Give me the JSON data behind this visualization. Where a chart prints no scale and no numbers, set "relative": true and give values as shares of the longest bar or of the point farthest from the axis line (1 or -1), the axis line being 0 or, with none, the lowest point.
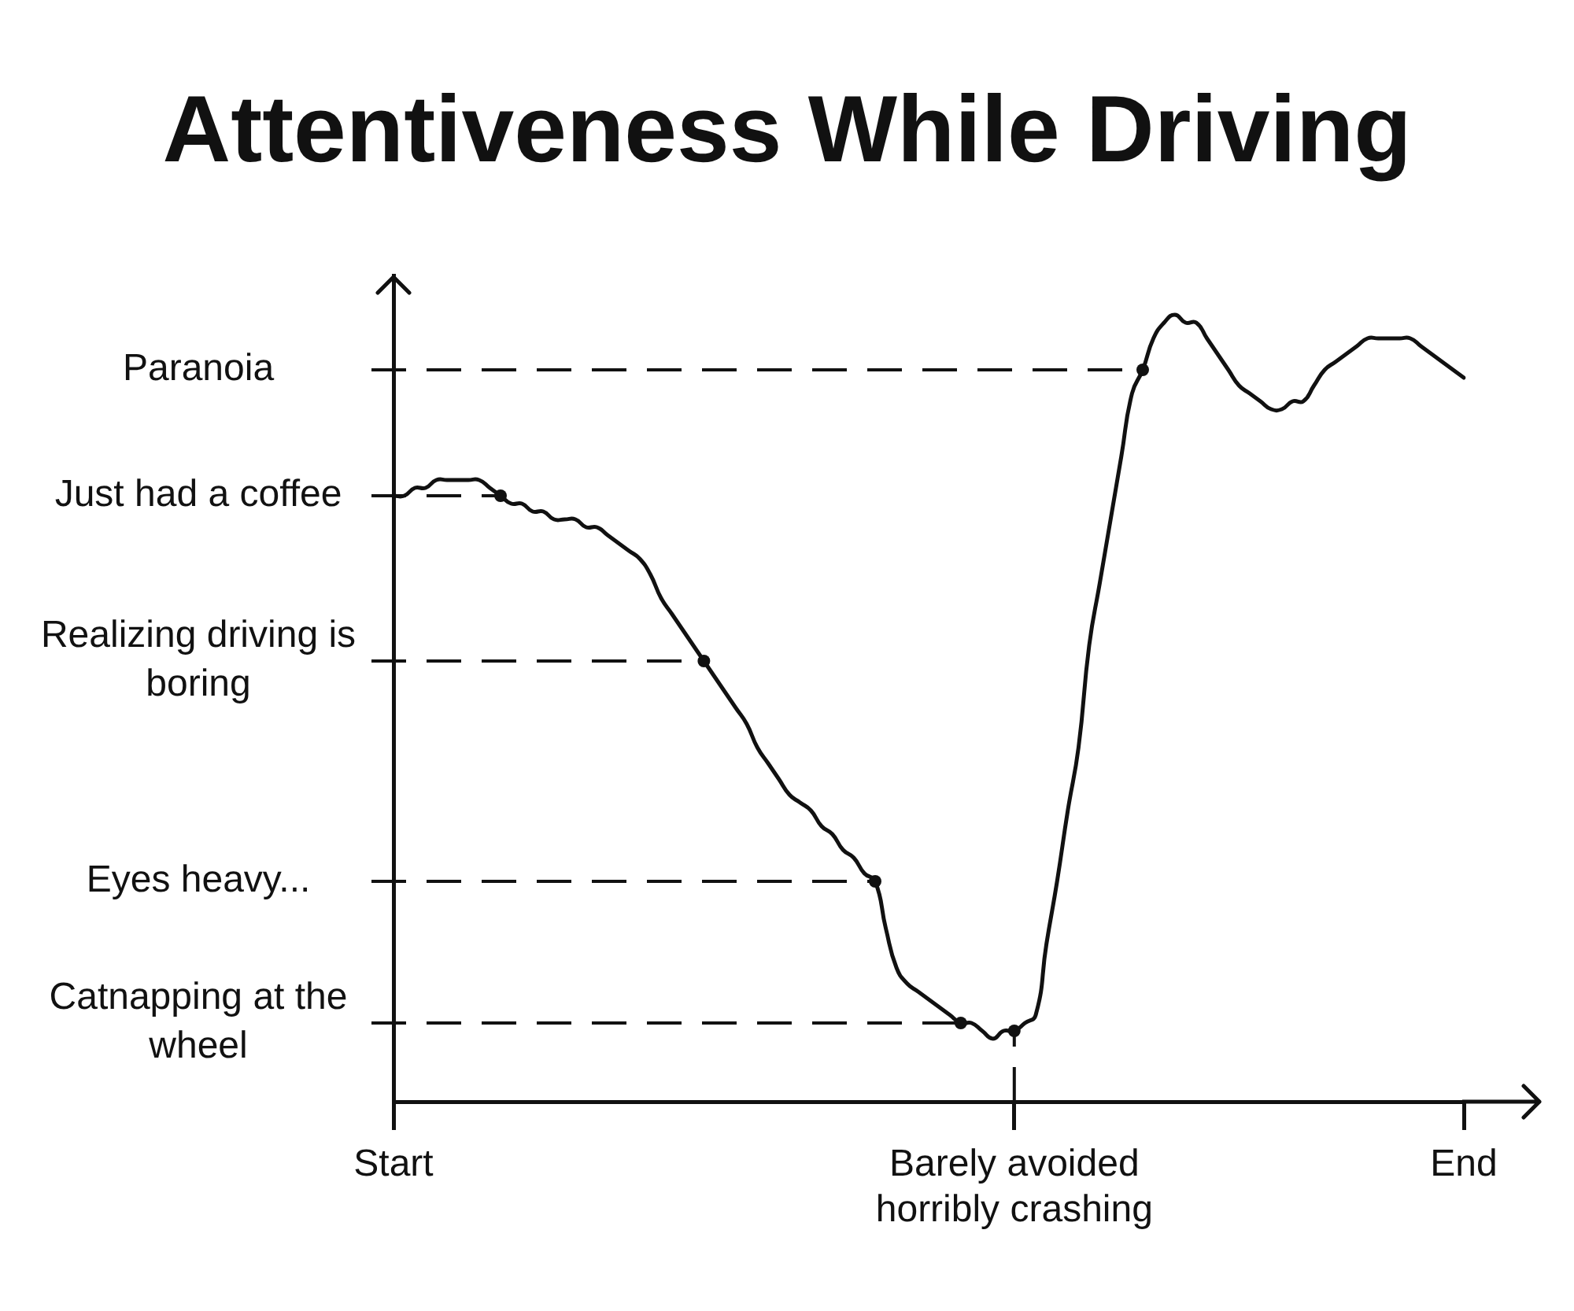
{
  "chart_data": {
    "type": "line",
    "title": "Attentiveness While Driving",
    "relative": true,
    "color": "#111111",
    "categories": [
      "Start",
      null,
      null,
      null,
      null,
      null,
      null,
      null,
      null,
      null,
      null,
      null,
      null,
      null,
      null,
      null,
      null,
      null,
      null,
      null,
      null,
      null,
      null,
      null,
      null,
      null,
      null,
      null,
      null,
      null,
      null,
      null,
      null,
      null,
      null,
      null,
      null,
      null,
      null,
      null,
      null,
      null,
      null,
      null,
      null,
      null,
      null,
      null,
      null,
      null,
      null,
      null,
      null,
      null,
      null,
      null,
      null,
      null,
      "Barely avoided horribly crashing",
      null,
      null,
      null,
      null,
      null,
      null,
      null,
      null,
      null,
      null,
      null,
      null,
      null,
      null,
      null,
      null,
      null,
      null,
      null,
      null,
      null,
      null,
      null,
      null,
      null,
      null,
      null,
      null,
      null,
      null,
      null,
      null,
      null,
      null,
      null,
      null,
      null,
      null,
      null,
      null,
      null,
      "End"
    ],
    "values": [
      0.77,
      0.77,
      0.78,
      0.78,
      0.79,
      0.79,
      0.79,
      0.79,
      0.79,
      0.78,
      0.77,
      0.76,
      0.76,
      0.75,
      0.75,
      0.74,
      0.74,
      0.74,
      0.73,
      0.73,
      0.72,
      0.71,
      0.7,
      0.69,
      0.67,
      0.64,
      0.62,
      0.6,
      0.58,
      0.56,
      0.54,
      0.52,
      0.5,
      0.48,
      0.45,
      0.43,
      0.41,
      0.39,
      0.38,
      0.37,
      0.35,
      0.34,
      0.32,
      0.31,
      0.29,
      0.28,
      0.22,
      0.17,
      0.15,
      0.14,
      0.13,
      0.12,
      0.11,
      0.1,
      0.1,
      0.09,
      0.08,
      0.09,
      0.09,
      0.1,
      0.11,
      0.2,
      0.28,
      0.37,
      0.45,
      0.58,
      0.66,
      0.74,
      0.82,
      0.9,
      0.93,
      0.97,
      0.99,
      1,
      0.99,
      0.99,
      0.97,
      0.95,
      0.93,
      0.91,
      0.9,
      0.89,
      0.88,
      0.88,
      0.89,
      0.89,
      0.91,
      0.93,
      0.94,
      0.95,
      0.96,
      0.97,
      0.97,
      0.97,
      0.97,
      0.97,
      0.96,
      0.95,
      0.94,
      0.93,
      0.92
    ],
    "ref_lines": [
      {
        "axis": "y",
        "value": 0.93,
        "label": "Paranoia",
        "line_style": "dashed"
      },
      {
        "axis": "y",
        "value": 0.77,
        "label": "Just had a coffee",
        "line_style": "dashed"
      },
      {
        "axis": "y",
        "value": 0.56,
        "label": "Realizing driving is boring",
        "line_style": "dashed"
      },
      {
        "axis": "y",
        "value": 0.28,
        "label": "Eyes heavy...",
        "line_style": "dashed"
      },
      {
        "axis": "y",
        "value": 0.1,
        "label": "Catnapping at the wheel",
        "line_style": "dashed"
      },
      {
        "axis": "x",
        "value": "Barely avoided horribly crashing",
        "line_style": "dashed"
      }
    ]
  }
}
